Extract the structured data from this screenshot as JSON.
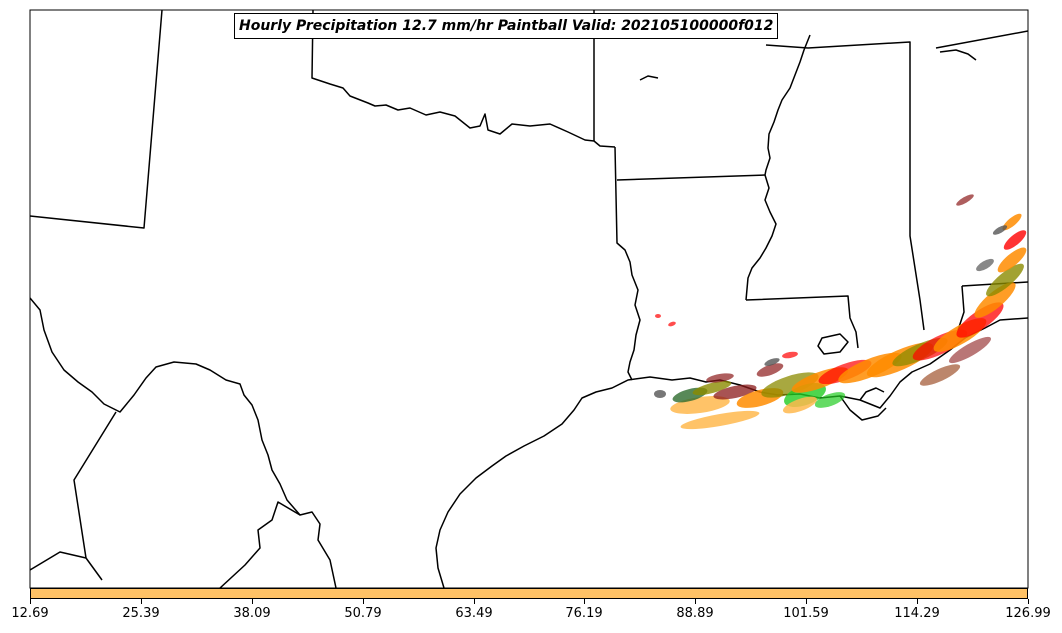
{
  "title": "Hourly Precipitation 12.7 mm/hr Paintball Valid: 202105100000f012",
  "colorbar": {
    "color": "#ffc266",
    "ticks": [
      "12.69",
      "25.39",
      "38.09",
      "50.79",
      "63.49",
      "76.19",
      "88.89",
      "101.59",
      "114.29",
      "126.99"
    ]
  },
  "palette": {
    "orange": "#ff8c00",
    "light_orange": "#ffb84d",
    "red": "#ff0000",
    "dark_red": "#8b1a1a",
    "green": "#22cc22",
    "dark_green": "#2e6b2e",
    "olive": "#8b8b00",
    "gray": "#555555",
    "brown": "#a0522d"
  }
}
